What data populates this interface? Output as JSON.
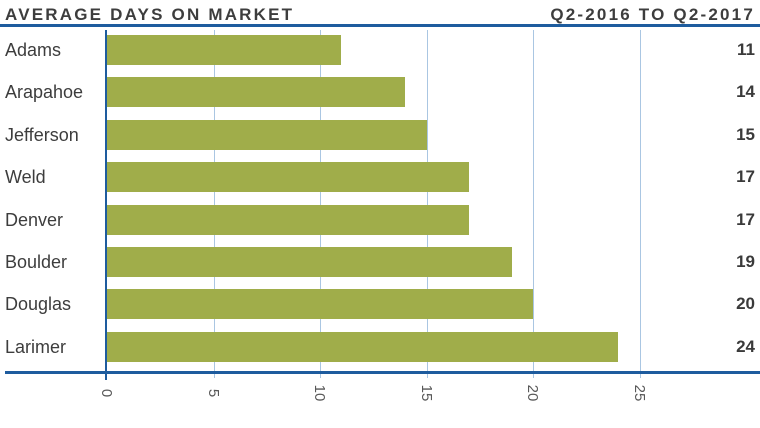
{
  "header": {
    "title": "AVERAGE DAYS ON MARKET",
    "period": "Q2-2016 TO Q2-2017"
  },
  "chart_data": {
    "type": "bar",
    "orientation": "horizontal",
    "title": "AVERAGE DAYS ON MARKET",
    "subtitle": "Q2-2016 TO Q2-2017",
    "categories": [
      "Adams",
      "Arapahoe",
      "Jefferson",
      "Weld",
      "Denver",
      "Boulder",
      "Douglas",
      "Larimer"
    ],
    "values": [
      11,
      14,
      15,
      17,
      17,
      19,
      20,
      24
    ],
    "data_labels": [
      "11",
      "14",
      "15",
      "17",
      "17",
      "19",
      "20",
      "24"
    ],
    "x_tick_labels": [
      "0",
      "5",
      "10",
      "15",
      "20",
      "25"
    ],
    "x_tick_values": [
      0,
      5,
      10,
      15,
      20,
      25
    ],
    "xlim": [
      0,
      30.5
    ],
    "xlabel": "",
    "ylabel": "",
    "grid": "vertical",
    "legend_position": "none",
    "bar_color": "#a0ad4a",
    "axis_color": "#1e5c9e",
    "gridline_color": "#aac6e2",
    "label_color": "#3d3d3d",
    "tick_label_color": "#585858"
  }
}
